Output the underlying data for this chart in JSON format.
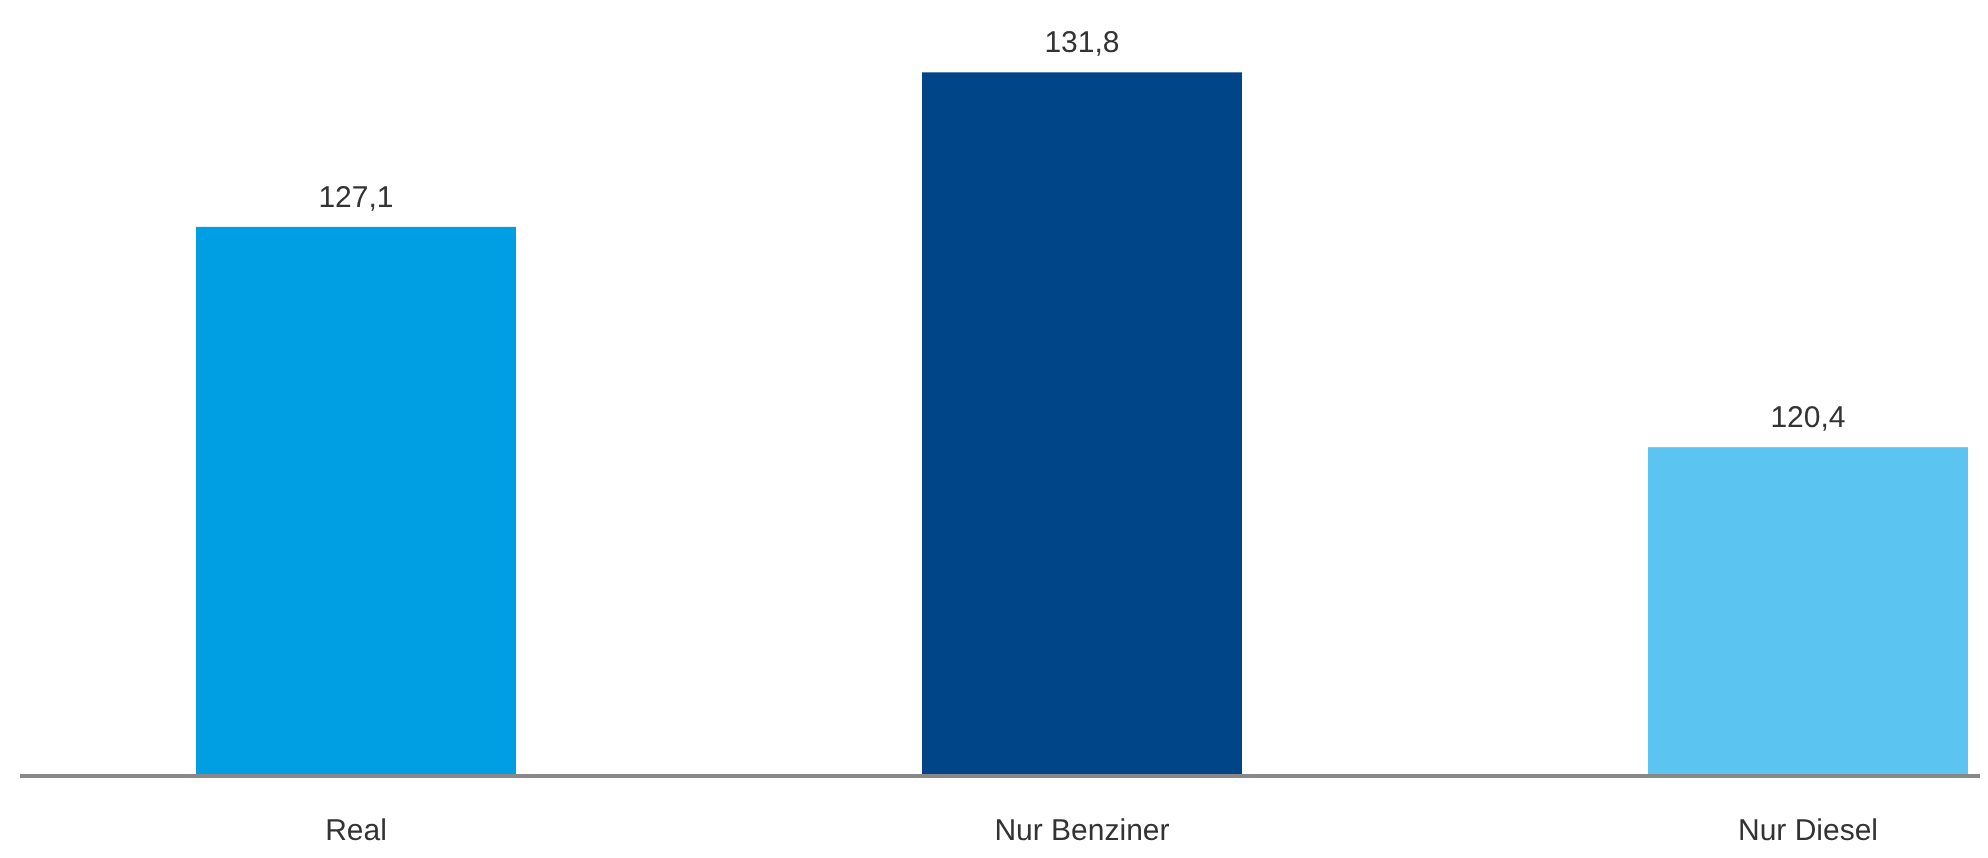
{
  "chart_data": {
    "type": "bar",
    "categories": [
      "Real",
      "Nur Benziner",
      "Nur Diesel"
    ],
    "values": [
      127.1,
      131.8,
      120.4
    ],
    "colors": [
      "#009fe3",
      "#004587",
      "#5bc4f1"
    ],
    "value_labels": [
      "127,1",
      "131,8",
      "120,4"
    ],
    "ylim": [
      110.4,
      134
    ],
    "tick_labels": "x"
  }
}
